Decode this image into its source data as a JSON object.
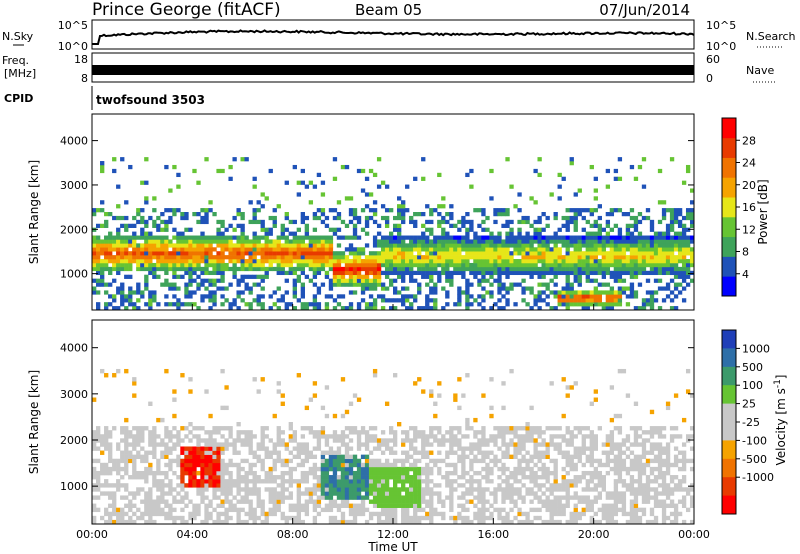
{
  "header": {
    "station": "Prince George (fitACF)",
    "beam": "Beam 05",
    "date": "07/Jun/2014"
  },
  "noise_panel": {
    "left_label": "N.Sky",
    "right_label": "N.Search",
    "left_ticks": [
      "10^5",
      "10^0"
    ],
    "right_ticks": [
      "10^5",
      "10^0"
    ]
  },
  "freq_panel": {
    "left_label_1": "Freq.",
    "left_label_2": "[MHz]",
    "right_label": "Nave",
    "left_ticks": [
      "18",
      "8"
    ],
    "right_ticks": [
      "60",
      "0"
    ]
  },
  "cpid_panel": {
    "label": "CPID",
    "value": "twofsound 3503"
  },
  "colors": {
    "power_scale": [
      "#0000ff",
      "#1f52b8",
      "#3ea35a",
      "#66c433",
      "#e6e619",
      "#f5a300",
      "#f07300",
      "#e83a00",
      "#ff0000"
    ],
    "velocity_scale": [
      "#1f3fb8",
      "#2e6fa8",
      "#3c9a6b",
      "#66c433",
      "#c8c8c8",
      "#c8c8c8",
      "#f5a300",
      "#f07300",
      "#e83a00",
      "#ff0000"
    ]
  },
  "chart_data": [
    {
      "type": "heatmap",
      "title": "Power",
      "xlabel": "Time UT",
      "ylabel": "Slant Range [km]",
      "x_ticks": [
        "00:00",
        "04:00",
        "08:00",
        "12:00",
        "16:00",
        "20:00",
        "00:00"
      ],
      "xlim": [
        0,
        24
      ],
      "ylim": [
        180,
        4600
      ],
      "y_ticks": [
        1000,
        2000,
        3000,
        4000
      ],
      "colorbar_label": "Power [dB]",
      "colorbar_ticks": [
        4,
        8,
        12,
        16,
        20,
        24,
        28
      ],
      "colorbar_range": [
        0,
        32
      ],
      "bands": [
        {
          "t_start": 0.0,
          "t_end": 9.5,
          "range_center": 1450,
          "value": 26
        },
        {
          "t_start": 9.5,
          "t_end": 11.5,
          "range_center": 1100,
          "value": 28
        },
        {
          "t_start": 11.5,
          "t_end": 24.0,
          "range_center": 1400,
          "value": 18
        },
        {
          "t_start": 18.5,
          "t_end": 21.0,
          "range_center": 450,
          "value": 28
        }
      ]
    },
    {
      "type": "heatmap",
      "title": "Velocity",
      "xlabel": "Time UT",
      "ylabel": "Slant Range [km]",
      "x_ticks": [
        "00:00",
        "04:00",
        "08:00",
        "12:00",
        "16:00",
        "20:00",
        "00:00"
      ],
      "xlim": [
        0,
        24
      ],
      "ylim": [
        180,
        4600
      ],
      "y_ticks": [
        1000,
        2000,
        3000,
        4000
      ],
      "colorbar_label": "Velocity [m s^-1]",
      "colorbar_ticks": [
        1000,
        500,
        100,
        25,
        -25,
        -100,
        -500,
        -1000
      ],
      "regions": [
        {
          "t_start": 3.5,
          "t_end": 5.0,
          "range_center": 1400,
          "value": -800
        },
        {
          "t_start": 9.0,
          "t_end": 11.0,
          "range_center": 1200,
          "value": 300
        },
        {
          "t_start": 11.0,
          "t_end": 13.0,
          "range_center": 1000,
          "value": 150
        }
      ]
    }
  ]
}
